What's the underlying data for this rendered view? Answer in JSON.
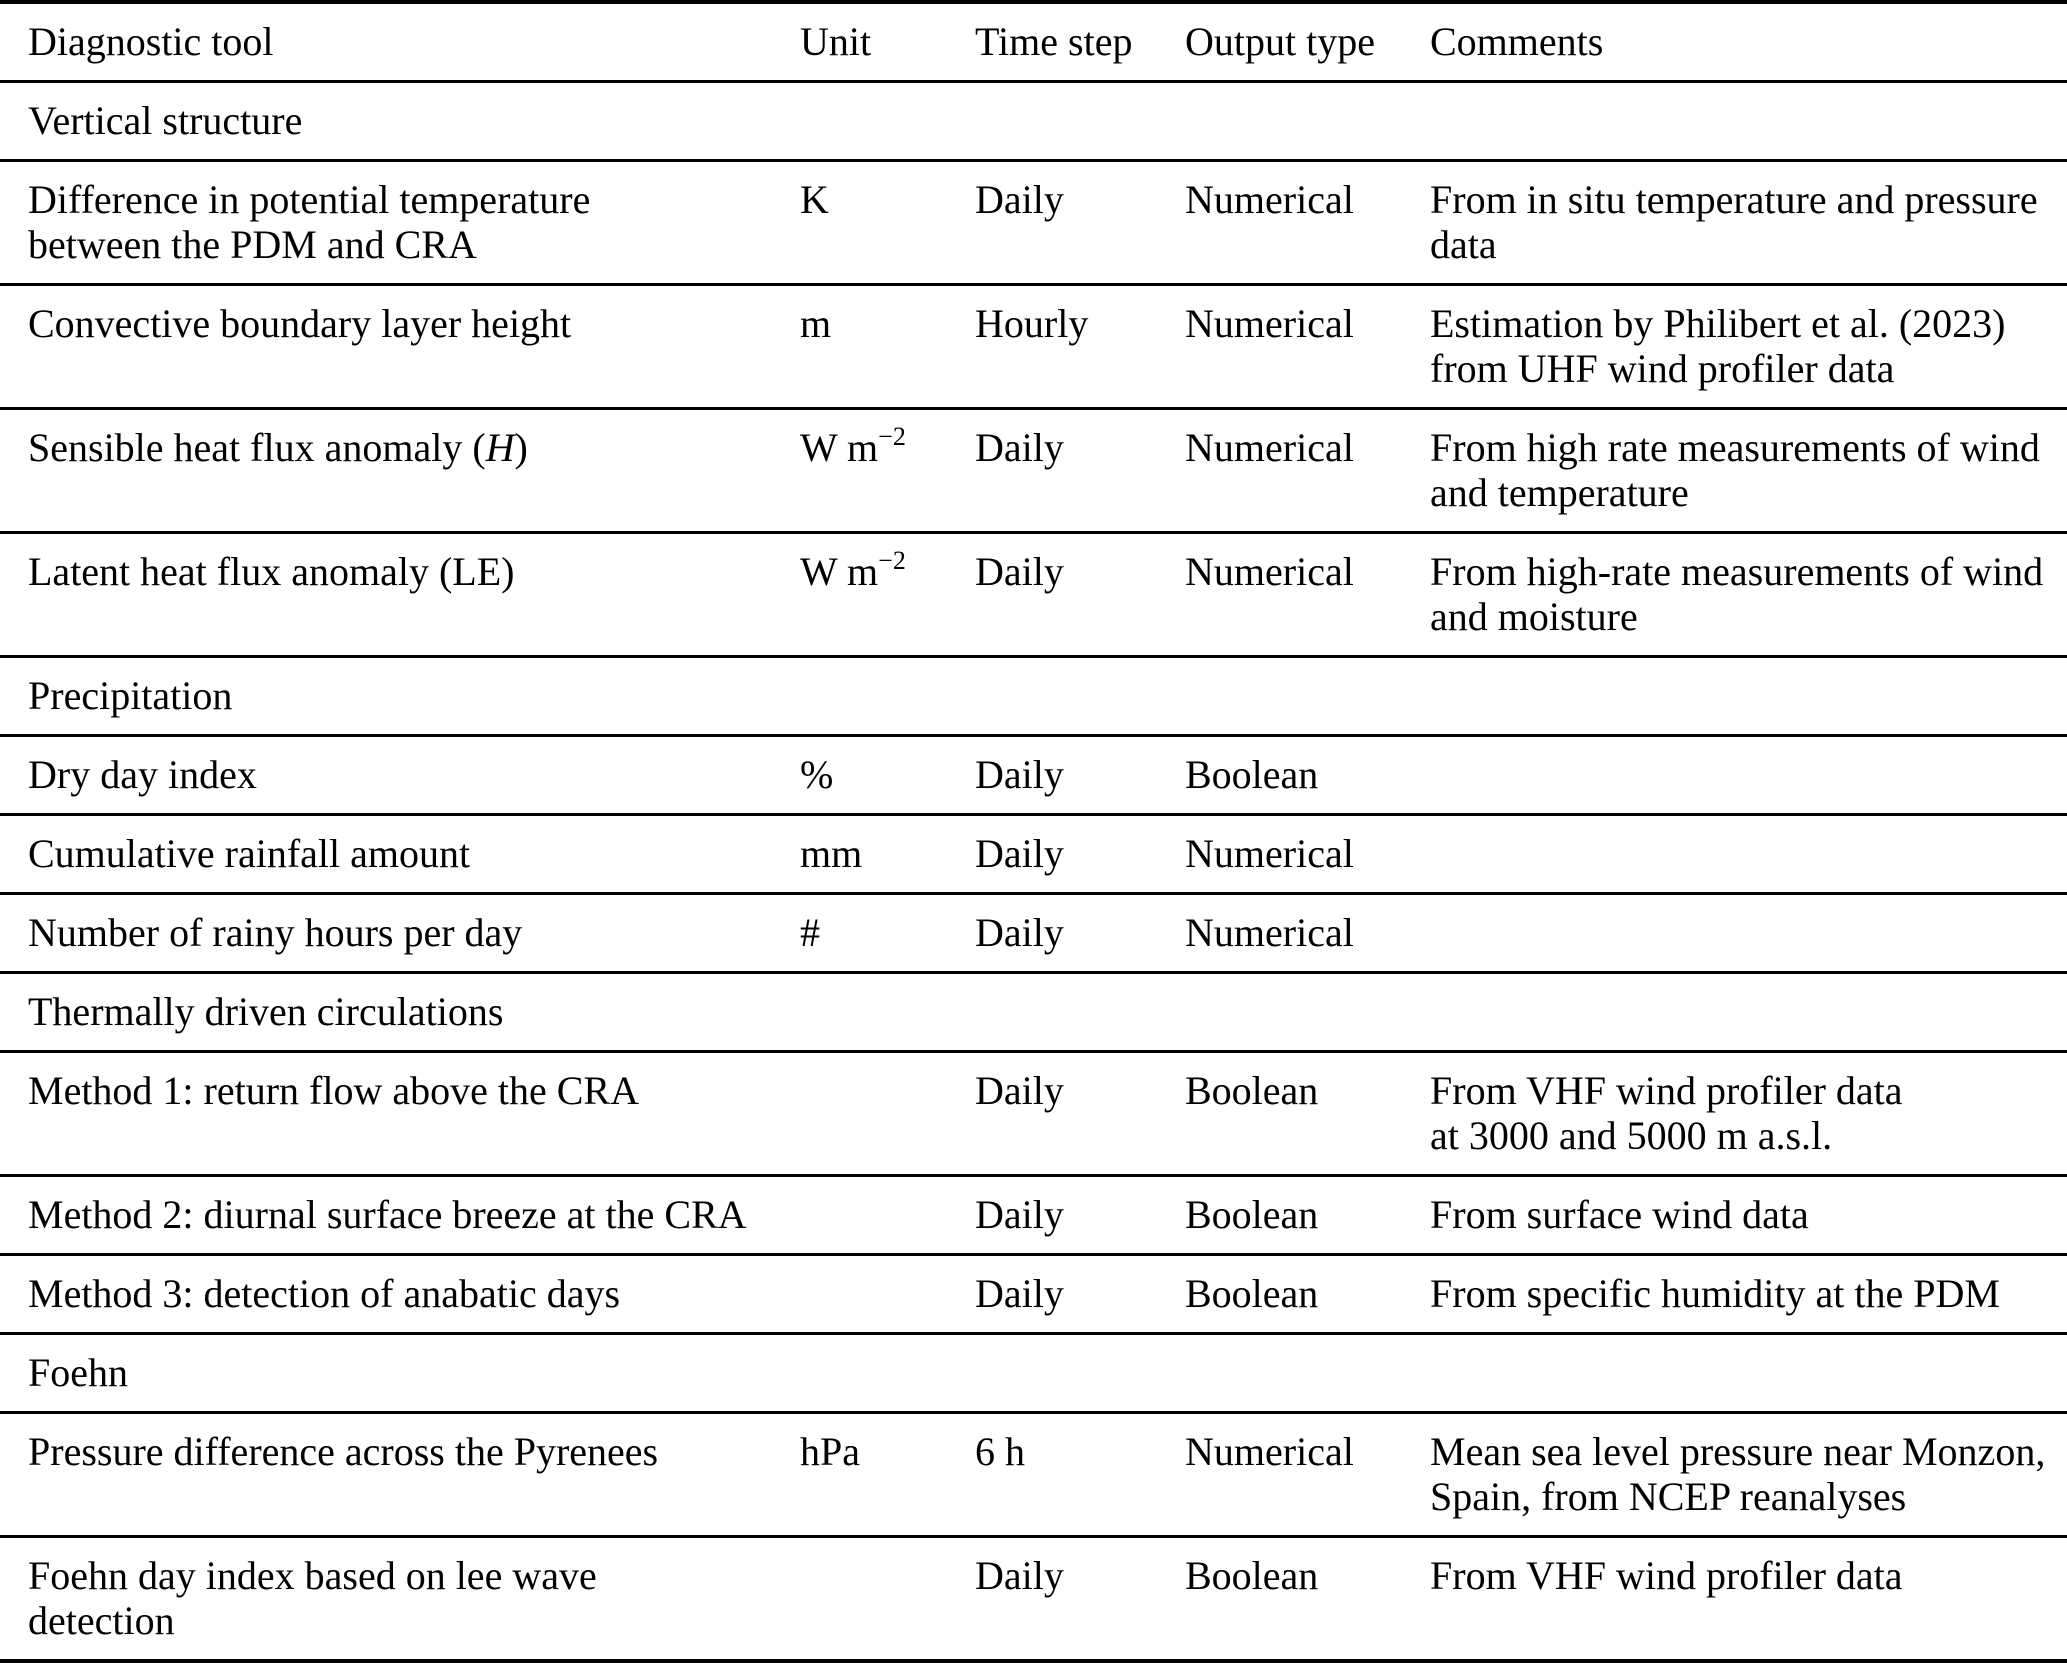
{
  "table": {
    "columns": [
      "Diagnostic tool",
      "Unit",
      "Time step",
      "Output type",
      "Comments"
    ],
    "sections": [
      {
        "title": "Vertical structure",
        "rows": [
          {
            "tool": "Difference in potential temperature\nbetween the PDM and CRA",
            "tool_italic": "",
            "tool_end": "",
            "unit": "K",
            "unit_sup": "",
            "time_step": "Daily",
            "output_type": "Numerical",
            "comments": "From in situ temperature and pressure\ndata"
          },
          {
            "tool": "Convective boundary layer height",
            "tool_italic": "",
            "tool_end": "",
            "unit": "m",
            "unit_sup": "",
            "time_step": "Hourly",
            "output_type": "Numerical",
            "comments": "Estimation by Philibert et al. (2023)\nfrom UHF wind profiler data"
          },
          {
            "tool": "Sensible heat flux anomaly (",
            "tool_italic": "H",
            "tool_end": ")",
            "unit": "W m",
            "unit_sup": "−2",
            "time_step": "Daily",
            "output_type": "Numerical",
            "comments": "From high rate measurements of wind\nand temperature"
          },
          {
            "tool": "Latent heat flux anomaly (LE)",
            "tool_italic": "",
            "tool_end": "",
            "unit": "W m",
            "unit_sup": "−2",
            "time_step": "Daily",
            "output_type": "Numerical",
            "comments": "From high-rate measurements of wind\nand moisture"
          }
        ]
      },
      {
        "title": "Precipitation",
        "rows": [
          {
            "tool": "Dry day index",
            "tool_italic": "",
            "tool_end": "",
            "unit": "%",
            "unit_sup": "",
            "time_step": "Daily",
            "output_type": "Boolean",
            "comments": ""
          },
          {
            "tool": "Cumulative rainfall amount",
            "tool_italic": "",
            "tool_end": "",
            "unit": "mm",
            "unit_sup": "",
            "time_step": "Daily",
            "output_type": "Numerical",
            "comments": ""
          },
          {
            "tool": "Number of rainy hours per day",
            "tool_italic": "",
            "tool_end": "",
            "unit": "#",
            "unit_sup": "",
            "time_step": "Daily",
            "output_type": "Numerical",
            "comments": ""
          }
        ]
      },
      {
        "title": "Thermally driven circulations",
        "rows": [
          {
            "tool": "Method 1: return flow above the CRA",
            "tool_italic": "",
            "tool_end": "",
            "unit": "",
            "unit_sup": "",
            "time_step": "Daily",
            "output_type": "Boolean",
            "comments": "From VHF wind profiler data\nat 3000 and 5000 m a.s.l."
          },
          {
            "tool": "Method 2: diurnal surface breeze at the CRA",
            "tool_italic": "",
            "tool_end": "",
            "unit": "",
            "unit_sup": "",
            "time_step": "Daily",
            "output_type": "Boolean",
            "comments": "From surface wind data"
          },
          {
            "tool": "Method 3: detection of anabatic days",
            "tool_italic": "",
            "tool_end": "",
            "unit": "",
            "unit_sup": "",
            "time_step": "Daily",
            "output_type": "Boolean",
            "comments": "From specific humidity at the PDM"
          }
        ]
      },
      {
        "title": "Foehn",
        "rows": [
          {
            "tool": "Pressure difference across the Pyrenees",
            "tool_italic": "",
            "tool_end": "",
            "unit": "hPa",
            "unit_sup": "",
            "time_step": "6 h",
            "output_type": "Numerical",
            "comments": "Mean sea level pressure near Monzon,\nSpain, from NCEP reanalyses"
          },
          {
            "tool": "Foehn day index based on lee wave\ndetection",
            "tool_italic": "",
            "tool_end": "",
            "unit": "",
            "unit_sup": "",
            "time_step": "Daily",
            "output_type": "Boolean",
            "comments": "From VHF wind profiler data"
          }
        ]
      }
    ]
  }
}
